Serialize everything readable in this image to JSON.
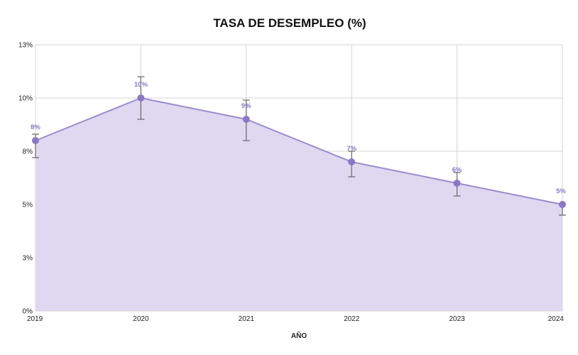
{
  "chart_data": {
    "type": "area",
    "title": "TASA DE DESEMPLEO (%)",
    "xlabel": "AÑO",
    "ylabel": "",
    "ylim": [
      0,
      12.5
    ],
    "yticks": [
      0,
      2.5,
      5,
      7.5,
      10,
      12.5
    ],
    "ytick_labels": [
      "0%",
      "3%",
      "5%",
      "8%",
      "10%",
      "13%"
    ],
    "categories": [
      "2019",
      "2020",
      "2021",
      "2022",
      "2023",
      "2024"
    ],
    "values": [
      8.0,
      10.0,
      9.0,
      7.0,
      6.0,
      5.0
    ],
    "data_labels": [
      "8%",
      "10%",
      "9%",
      "7%",
      "6%",
      "5%"
    ],
    "error_low": [
      7.2,
      9.0,
      8.0,
      6.3,
      5.4,
      4.5
    ],
    "error_high": [
      8.3,
      11.0,
      9.9,
      7.5,
      6.5,
      5.0
    ],
    "grid": true,
    "legend": "none",
    "colors": {
      "line": "#9b8ccc",
      "fill": "#dcd6ef",
      "marker": "#8a78c4",
      "label": "#8a78c4",
      "grid": "#d4d4d4",
      "error": "#666666"
    }
  }
}
